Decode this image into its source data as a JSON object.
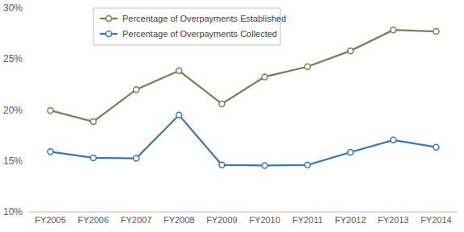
{
  "chart_data": {
    "type": "line",
    "categories": [
      "FY2005",
      "FY2006",
      "FY2007",
      "FY2008",
      "FY2009",
      "FY2010",
      "FY2011",
      "FY2012",
      "FY2013",
      "FY2014"
    ],
    "series": [
      {
        "name": "Percentage of Overpayments Established",
        "color": "#7e7c52",
        "marker": "circle",
        "line_style": "solid",
        "values": [
          19.95,
          18.85,
          22.0,
          23.85,
          20.6,
          23.25,
          24.25,
          25.8,
          27.85,
          27.7
        ]
      },
      {
        "name": "Percentage of Overpayments Collected",
        "color": "#3a78b5",
        "marker": "circle",
        "line_style": "solid",
        "values": [
          15.9,
          15.3,
          15.25,
          19.5,
          14.6,
          14.55,
          14.6,
          15.85,
          17.05,
          16.35
        ]
      }
    ],
    "ylim": [
      10,
      30
    ],
    "yticks": [
      {
        "value": 10,
        "label": "10%"
      },
      {
        "value": 15,
        "label": "15%"
      },
      {
        "value": 20,
        "label": "20%"
      },
      {
        "value": 25,
        "label": "25%"
      },
      {
        "value": 30,
        "label": "30%"
      }
    ],
    "grid": false,
    "legend": "top-left"
  }
}
